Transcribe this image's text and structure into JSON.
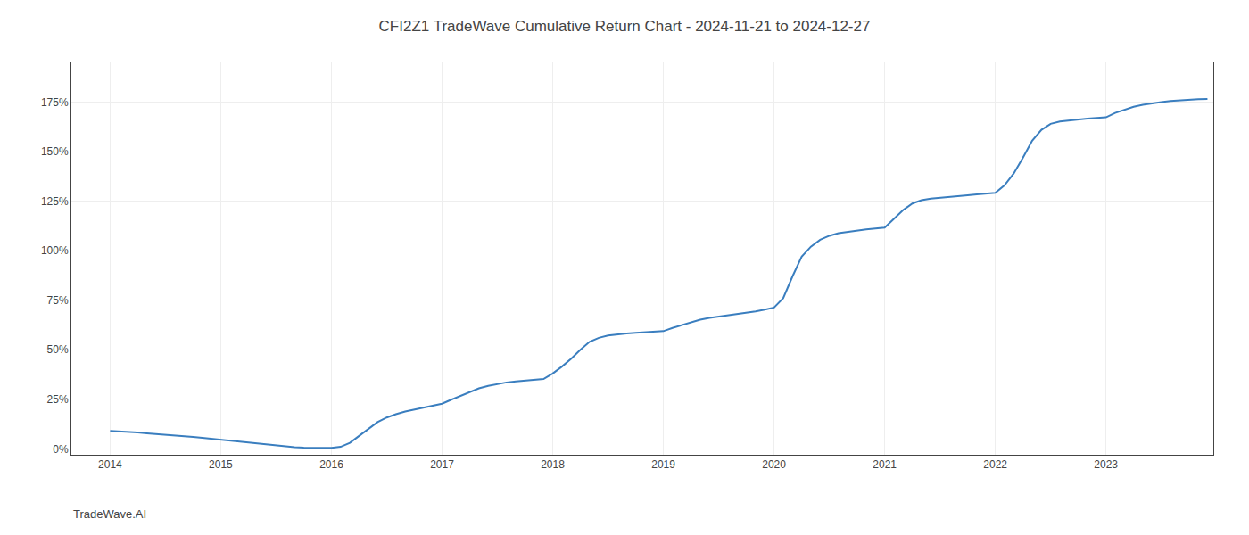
{
  "chart_data": {
    "type": "line",
    "title": "CFI2Z1 TradeWave Cumulative Return Chart - 2024-11-21 to 2024-12-27",
    "annotations": [
      "TradeWave.AI"
    ],
    "color": "#3a7ebf",
    "grid": true,
    "x": [
      2014.0,
      2014.083,
      2014.167,
      2014.25,
      2014.333,
      2014.417,
      2014.5,
      2014.583,
      2014.667,
      2014.75,
      2014.833,
      2014.917,
      2015.0,
      2015.083,
      2015.167,
      2015.25,
      2015.333,
      2015.417,
      2015.5,
      2015.583,
      2015.667,
      2015.75,
      2015.833,
      2015.917,
      2016.0,
      2016.083,
      2016.167,
      2016.25,
      2016.333,
      2016.417,
      2016.5,
      2016.583,
      2016.667,
      2016.75,
      2016.833,
      2016.917,
      2017.0,
      2017.083,
      2017.167,
      2017.25,
      2017.333,
      2017.417,
      2017.5,
      2017.583,
      2017.667,
      2017.75,
      2017.833,
      2017.917,
      2018.0,
      2018.083,
      2018.167,
      2018.25,
      2018.333,
      2018.417,
      2018.5,
      2018.583,
      2018.667,
      2018.75,
      2018.833,
      2018.917,
      2019.0,
      2019.083,
      2019.167,
      2019.25,
      2019.333,
      2019.417,
      2019.5,
      2019.583,
      2019.667,
      2019.75,
      2019.833,
      2019.917,
      2020.0,
      2020.083,
      2020.167,
      2020.25,
      2020.333,
      2020.417,
      2020.5,
      2020.583,
      2020.667,
      2020.75,
      2020.833,
      2020.917,
      2021.0,
      2021.083,
      2021.167,
      2021.25,
      2021.333,
      2021.417,
      2021.5,
      2021.583,
      2021.667,
      2021.75,
      2021.833,
      2021.917,
      2022.0,
      2022.083,
      2022.167,
      2022.25,
      2022.333,
      2022.417,
      2022.5,
      2022.583,
      2022.667,
      2022.75,
      2022.833,
      2022.917,
      2023.0,
      2023.083,
      2023.167,
      2023.25,
      2023.333,
      2023.417,
      2023.5,
      2023.583,
      2023.667,
      2023.75,
      2023.833,
      2023.917
    ],
    "values": [
      0.09,
      0.088,
      0.085,
      0.082,
      0.078,
      0.075,
      0.071,
      0.068,
      0.065,
      0.06,
      0.055,
      0.05,
      0.046,
      0.042,
      0.038,
      0.032,
      0.026,
      0.02,
      0.015,
      0.011,
      0.008,
      0.006,
      0.005,
      0.005,
      0.005,
      0.01,
      0.03,
      0.065,
      0.1,
      0.135,
      0.158,
      0.175,
      0.188,
      0.198,
      0.208,
      0.218,
      0.228,
      0.248,
      0.268,
      0.288,
      0.305,
      0.318,
      0.328,
      0.335,
      0.34,
      0.344,
      0.348,
      0.352,
      0.38,
      0.415,
      0.455,
      0.5,
      0.54,
      0.56,
      0.572,
      0.578,
      0.582,
      0.585,
      0.588,
      0.591,
      0.594,
      0.61,
      0.625,
      0.64,
      0.652,
      0.661,
      0.667,
      0.672,
      0.678,
      0.685,
      0.693,
      0.702,
      0.713,
      0.76,
      0.87,
      0.97,
      1.02,
      1.055,
      1.075,
      1.088,
      1.095,
      1.1,
      1.107,
      1.112,
      1.116,
      1.16,
      1.205,
      1.238,
      1.255,
      1.263,
      1.268,
      1.272,
      1.276,
      1.28,
      1.284,
      1.288,
      1.292,
      1.33,
      1.39,
      1.47,
      1.555,
      1.61,
      1.64,
      1.652,
      1.658,
      1.663,
      1.667,
      1.67,
      1.673,
      1.695,
      1.712,
      1.726,
      1.736,
      1.744,
      1.75,
      1.755,
      1.759,
      1.762,
      1.764,
      1.766
    ],
    "xlim": [
      2013.65,
      2023.97
    ],
    "ylim": [
      -0.03,
      1.95
    ],
    "xticks": [
      2014,
      2015,
      2016,
      2017,
      2018,
      2019,
      2020,
      2021,
      2022,
      2023
    ],
    "yticks": [
      {
        "value": 0.0,
        "label": "0%"
      },
      {
        "value": 0.25,
        "label": "25%"
      },
      {
        "value": 0.5,
        "label": "50%"
      },
      {
        "value": 0.75,
        "label": "75%"
      },
      {
        "value": 1.0,
        "label": "100%"
      },
      {
        "value": 1.25,
        "label": "125%"
      },
      {
        "value": 1.5,
        "label": "150%"
      },
      {
        "value": 1.75,
        "label": "175%"
      }
    ]
  }
}
